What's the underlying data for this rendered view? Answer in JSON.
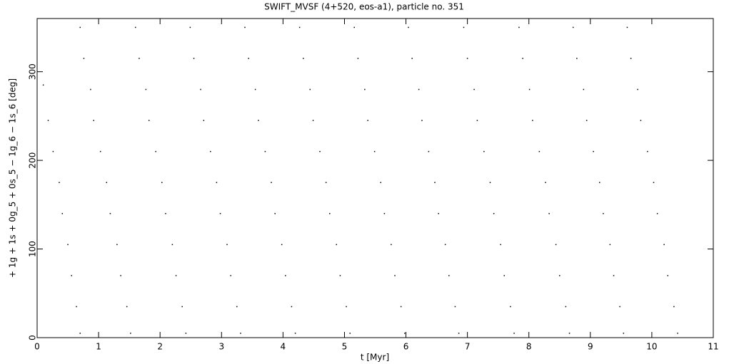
{
  "chart_data": {
    "type": "scatter",
    "title": "SWIFT_MVSF (4+520, eos-a1), particle no. 351",
    "x_label": "t [Myr]",
    "y_label": "+ 1g + 1s + 0g_5 + 0s_5 − 1g_6 − 1s_6 [deg]",
    "xlim": [
      0,
      11
    ],
    "ylim": [
      0,
      360
    ],
    "xticks": [
      0,
      1,
      2,
      3,
      4,
      5,
      6,
      7,
      8,
      9,
      10,
      11
    ],
    "yticks": [
      0,
      100,
      200,
      300
    ],
    "color": "#000000",
    "x": [
      0.1,
      0.18,
      0.26,
      0.36,
      0.41,
      0.5,
      0.56,
      0.64,
      0.7,
      0.7,
      0.76,
      0.87,
      0.92,
      1.03,
      1.13,
      1.19,
      1.3,
      1.36,
      1.46,
      1.52,
      1.6,
      1.66,
      1.77,
      1.82,
      1.93,
      2.03,
      2.09,
      2.2,
      2.26,
      2.36,
      2.42,
      2.49,
      2.55,
      2.66,
      2.71,
      2.82,
      2.92,
      2.98,
      3.09,
      3.15,
      3.25,
      3.31,
      3.38,
      3.44,
      3.55,
      3.6,
      3.71,
      3.81,
      3.87,
      3.98,
      4.04,
      4.14,
      4.2,
      4.27,
      4.33,
      4.44,
      4.49,
      4.6,
      4.7,
      4.76,
      4.87,
      4.93,
      5.03,
      5.09,
      5.16,
      5.22,
      5.33,
      5.38,
      5.49,
      5.59,
      5.65,
      5.76,
      5.82,
      5.92,
      5.98,
      6.04,
      6.1,
      6.21,
      6.26,
      6.37,
      6.47,
      6.53,
      6.64,
      6.7,
      6.8,
      6.86,
      6.94,
      7.0,
      7.11,
      7.16,
      7.27,
      7.37,
      7.43,
      7.54,
      7.6,
      7.7,
      7.76,
      7.84,
      7.9,
      8.01,
      8.06,
      8.17,
      8.27,
      8.33,
      8.44,
      8.5,
      8.6,
      8.66,
      8.72,
      8.78,
      8.89,
      8.94,
      9.05,
      9.15,
      9.21,
      9.32,
      9.38,
      9.48,
      9.54,
      9.6,
      9.66,
      9.77,
      9.82,
      9.93,
      10.03,
      10.09,
      10.2,
      10.26,
      10.36,
      10.42
    ],
    "y": [
      285,
      245,
      210,
      175,
      140,
      105,
      70,
      35,
      5,
      350,
      315,
      280,
      245,
      210,
      175,
      140,
      105,
      70,
      35,
      5,
      350,
      315,
      280,
      245,
      210,
      175,
      140,
      105,
      70,
      35,
      5,
      350,
      315,
      280,
      245,
      210,
      175,
      140,
      105,
      70,
      35,
      5,
      350,
      315,
      280,
      245,
      210,
      175,
      140,
      105,
      70,
      35,
      5,
      350,
      315,
      280,
      245,
      210,
      175,
      140,
      105,
      70,
      35,
      5,
      350,
      315,
      280,
      245,
      210,
      175,
      140,
      105,
      70,
      35,
      5,
      350,
      315,
      280,
      245,
      210,
      175,
      140,
      105,
      70,
      35,
      5,
      350,
      315,
      280,
      245,
      210,
      175,
      140,
      105,
      70,
      35,
      5,
      350,
      315,
      280,
      245,
      210,
      175,
      140,
      105,
      70,
      35,
      5,
      350,
      315,
      280,
      245,
      210,
      175,
      140,
      105,
      70,
      35,
      5,
      350,
      315,
      280,
      245,
      210,
      175,
      140,
      105,
      70,
      35,
      5
    ]
  }
}
